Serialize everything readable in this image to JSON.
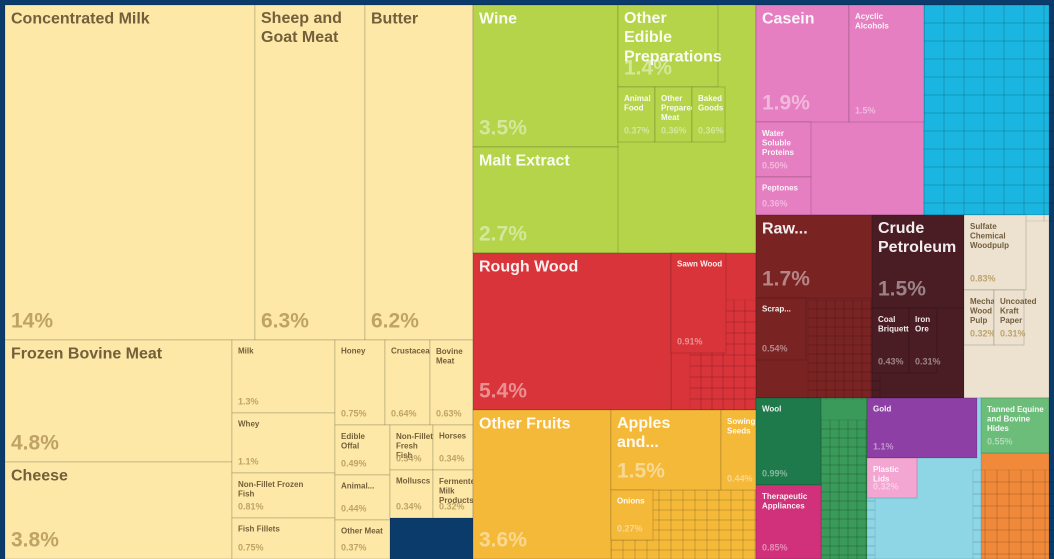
{
  "chart_data": {
    "type": "treemap",
    "categories": [
      "Concentrated Milk",
      "Sheep and Goat Meat",
      "Butter",
      "Frozen Bovine Meat",
      "Cheese",
      "Milk",
      "Whey",
      "Non-Fillet Frozen Fish",
      "Fish Fillets",
      "Honey",
      "Crustaceans",
      "Bovine Meat",
      "Edible Offal",
      "Non-Fillet Fresh Fish",
      "Horses",
      "Animal...",
      "Molluscs",
      "Fermented Milk Products",
      "Other Meat",
      "Wine",
      "Malt Extract",
      "Other Edible Preparations",
      "Animal Food",
      "Other Prepared Meat",
      "Baked Goods",
      "Rough Wood",
      "Sawn Wood",
      "Other Fruits",
      "Apples and...",
      "Sowing Seeds",
      "Onions",
      "Casein",
      "Acyclic Alcohols",
      "Water Soluble Proteins",
      "Peptones",
      "Raw...",
      "Scrap...",
      "Crude Petroleum",
      "Coal Briquettes",
      "Iron Ore",
      "Sulfate Chemical Woodpulp",
      "Mechanical Wood Pulp",
      "Uncoated Kraft Paper",
      "Wool",
      "Therapeutic Appliances",
      "Gold",
      "Tanned Equine and Bovine Hides",
      "Plastic Lids"
    ],
    "values": [
      14,
      6.3,
      6.2,
      4.8,
      3.8,
      1.3,
      1.1,
      0.81,
      0.75,
      0.75,
      0.64,
      0.63,
      0.49,
      0.34,
      0.34,
      0.44,
      0.34,
      0.32,
      0.37,
      3.5,
      2.7,
      1.4,
      0.37,
      0.36,
      0.36,
      5.4,
      0.91,
      3.6,
      1.5,
      0.44,
      0.27,
      1.9,
      1.5,
      0.5,
      0.36,
      1.7,
      0.54,
      1.5,
      0.43,
      0.31,
      0.83,
      0.32,
      0.31,
      0.99,
      0.85,
      1.1,
      0.55,
      0.32
    ],
    "value_labels": [
      "14%",
      "6.3%",
      "6.2%",
      "4.8%",
      "3.8%",
      "1.3%",
      "1.1%",
      "0.81%",
      "0.75%",
      "0.75%",
      "0.64%",
      "0.63%",
      "0.49%",
      "0.34%",
      "0.34%",
      "0.44%",
      "0.34%",
      "0.32%",
      "0.37%",
      "3.5%",
      "2.7%",
      "1.4%",
      "0.37%",
      "0.36%",
      "0.36%",
      "5.4%",
      "0.91%",
      "3.6%",
      "1.5%",
      "0.44%",
      "0.27%",
      "1.9%",
      "1.5%",
      "0.50%",
      "0.36%",
      "1.7%",
      "0.54%",
      "1.5%",
      "0.43%",
      "0.31%",
      "0.83%",
      "0.32%",
      "0.31%",
      "0.99%",
      "0.85%",
      "1.1%",
      "0.55%",
      "0.32%"
    ],
    "colors": [
      "#fde8a8",
      "#fde8a8",
      "#fde8a8",
      "#fde8a8",
      "#fde8a8",
      "#fde8a8",
      "#fde8a8",
      "#fde8a8",
      "#fde8a8",
      "#fde8a8",
      "#fde8a8",
      "#fde8a8",
      "#fde8a8",
      "#fde8a8",
      "#fde8a8",
      "#fde8a8",
      "#fde8a8",
      "#fde8a8",
      "#fde8a8",
      "#b5d44a",
      "#b5d44a",
      "#b5d44a",
      "#b5d44a",
      "#b5d44a",
      "#b5d44a",
      "#d9343a",
      "#d9343a",
      "#f5b93a",
      "#f5b93a",
      "#f5b93a",
      "#f5b93a",
      "#e57fc1",
      "#e57fc1",
      "#e57fc1",
      "#e57fc1",
      "#7a2323",
      "#7a2323",
      "#4a1c24",
      "#4a1c24",
      "#4a1c24",
      "#ede2d0",
      "#ede2d0",
      "#ede2d0",
      "#1e7a4a",
      "#d0317a",
      "#8e3fa6",
      "#6dbd7a",
      "#f4a6d2"
    ]
  }
}
